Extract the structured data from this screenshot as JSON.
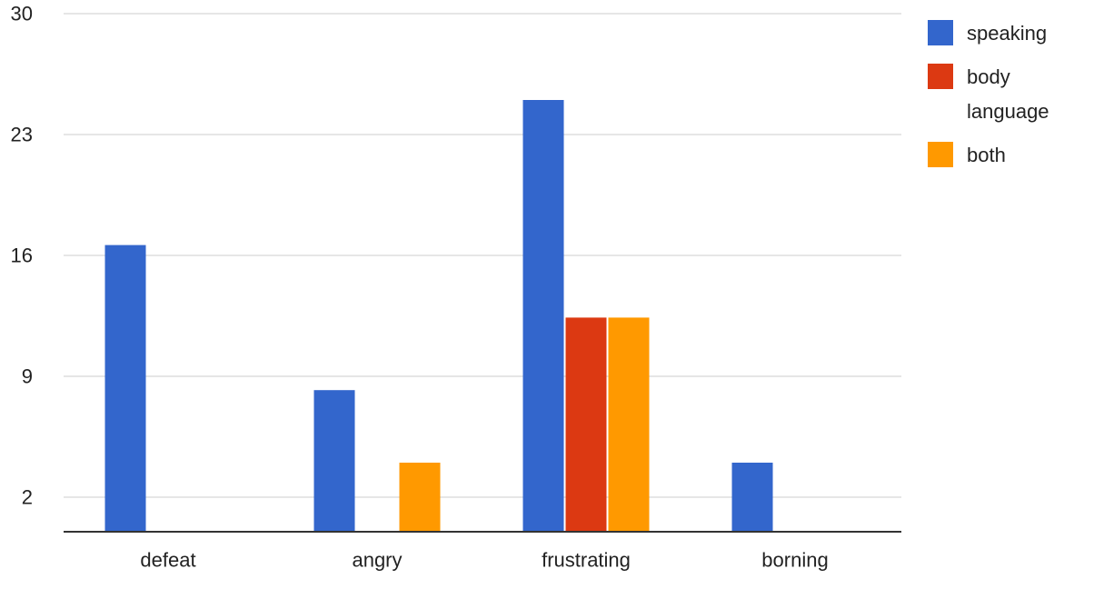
{
  "chart_data": {
    "type": "bar",
    "categories": [
      "defeat",
      "angry",
      "frustrating",
      "borning"
    ],
    "series": [
      {
        "name": "speaking",
        "color": "#3366cc",
        "values": [
          16.6,
          8.2,
          25,
          4
        ]
      },
      {
        "name": "body\nlanguage",
        "color": "#dc3912",
        "values": [
          0,
          0,
          12.4,
          0
        ]
      },
      {
        "name": "both",
        "color": "#ff9900",
        "values": [
          0,
          4,
          12.4,
          0
        ]
      }
    ],
    "yticks": [
      2,
      9,
      16,
      23,
      30
    ],
    "ylim": [
      0,
      30
    ],
    "grid": true,
    "legend_position": "right",
    "title": "",
    "xlabel": "",
    "ylabel": ""
  }
}
